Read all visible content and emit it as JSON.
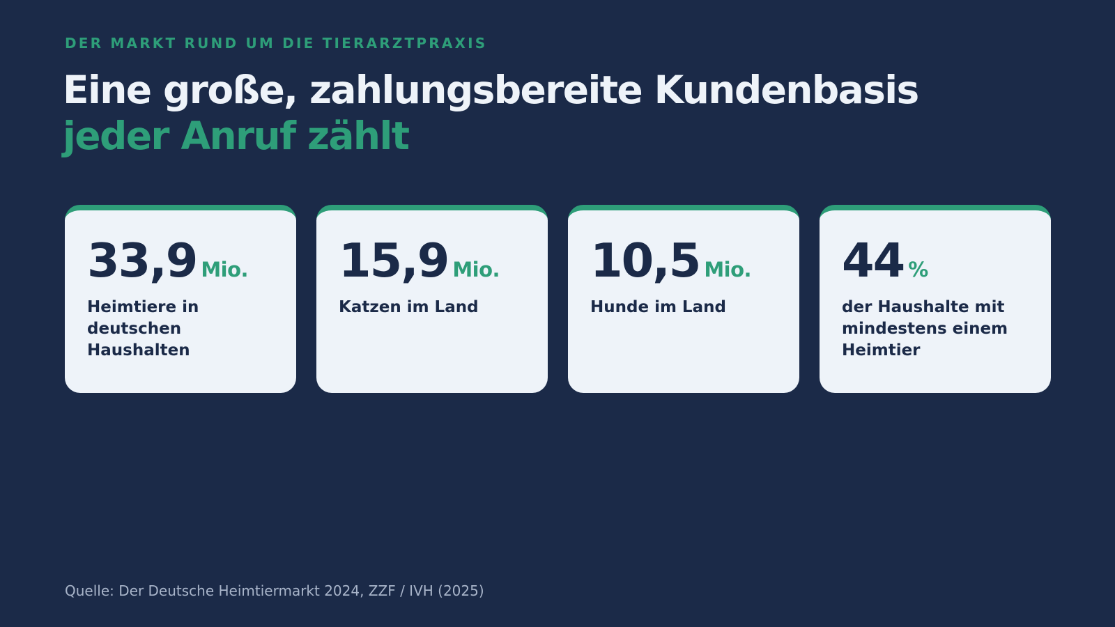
{
  "slide": {
    "eyebrow": "DER MARKT RUND UM DIE TIERARZTPRAXIS",
    "title_line1": "Eine große, zahlungsbereite Kundenbasis",
    "title_line2": "jeder Anruf zählt",
    "source": "Quelle: Der Deutsche Heimtiermarkt 2024, ZZF / IVH (2025)"
  },
  "stats": [
    {
      "value": "33,9",
      "unit": "Mio.",
      "label": "Heimtiere in deutschen Haushalten"
    },
    {
      "value": "15,9",
      "unit": "Mio.",
      "label": "Katzen im Land"
    },
    {
      "value": "10,5",
      "unit": "Mio.",
      "label": "Hunde im Land"
    },
    {
      "value": "44",
      "unit": "%",
      "label": "der Haushalte mit mindestens einem Heimtier"
    }
  ],
  "colors": {
    "background": "#1b2a48",
    "accent": "#2e9e79",
    "card": "#eef3f9",
    "text_light": "#eef3f9",
    "text_dark": "#1b2a48",
    "muted": "#a8b4c9"
  }
}
